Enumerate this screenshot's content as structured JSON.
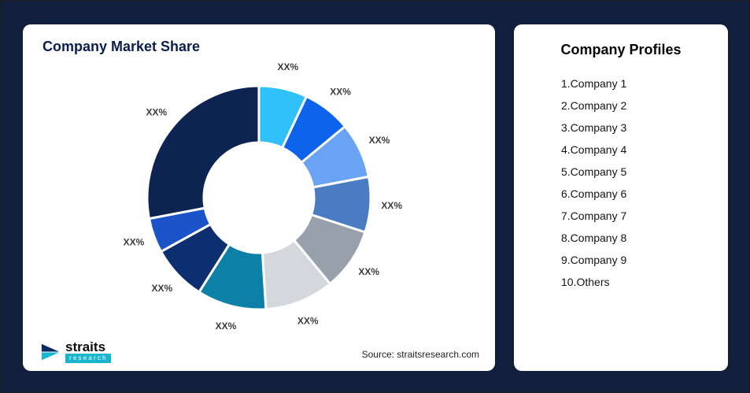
{
  "left_card": {
    "title": "Company Market Share",
    "source": "Source: straitsresearch.com"
  },
  "logo": {
    "name": "straits",
    "sub": "research"
  },
  "right_card": {
    "title": "Company Profiles",
    "items": [
      "1.Company 1",
      "2.Company 2",
      "3.Company 3",
      "4.Company 4",
      "5.Company 5",
      "6.Company 6",
      "7.Company 7",
      "8.Company 8",
      "9.Company 9",
      "10.Others"
    ]
  },
  "chart_data": {
    "type": "pie",
    "donut": true,
    "title": "Company Market Share",
    "legend_position": "none",
    "categories": [
      "Company 1",
      "Company 2",
      "Company 3",
      "Company 4",
      "Company 5",
      "Company 6",
      "Company 7",
      "Company 8",
      "Company 9",
      "Others"
    ],
    "values": [
      7,
      7,
      8,
      8,
      9,
      10,
      10,
      8,
      5,
      28
    ],
    "labels": [
      "XX%",
      "XX%",
      "XX%",
      "XX%",
      "XX%",
      "XX%",
      "XX%",
      "XX%",
      "XX%",
      "XX%"
    ],
    "colors": [
      "#2fc1f8",
      "#0d63e9",
      "#6aa2f4",
      "#4b7cc3",
      "#98a1ab",
      "#d4d7dc",
      "#0c80a7",
      "#0e2f6f",
      "#1c53c8",
      "#0d2452"
    ],
    "start_angle_deg": 0,
    "direction": "clockwise",
    "stroke_color": "#ffffff"
  }
}
